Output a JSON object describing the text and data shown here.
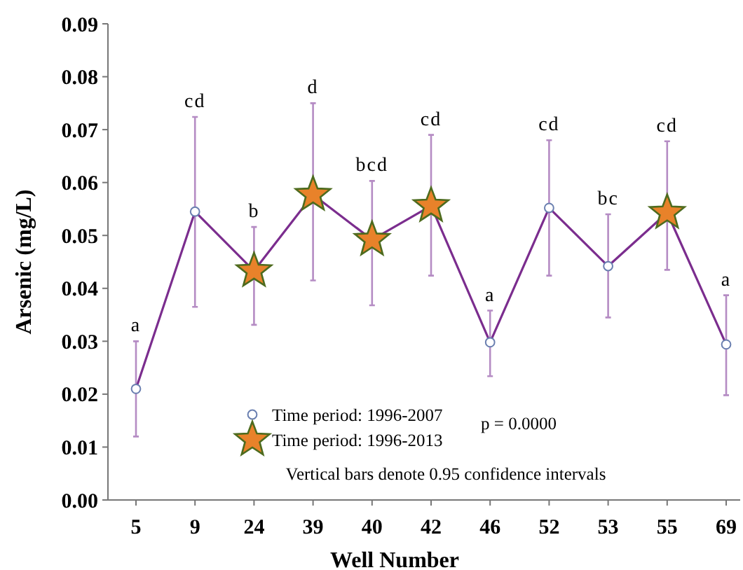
{
  "chart_data": {
    "type": "line",
    "xlabel": "Well Number",
    "ylabel": "Arsenic (mg/L)",
    "categories": [
      "5",
      "9",
      "24",
      "39",
      "40",
      "42",
      "46",
      "52",
      "53",
      "55",
      "69"
    ],
    "ylim": [
      0,
      0.09
    ],
    "yticks": [
      {
        "value": 0,
        "label": "0.00"
      },
      {
        "value": 0.01,
        "label": "0.01"
      },
      {
        "value": 0.02,
        "label": "0.02"
      },
      {
        "value": 0.03,
        "label": "0.03"
      },
      {
        "value": 0.04,
        "label": "0.04"
      },
      {
        "value": 0.05,
        "label": "0.05"
      },
      {
        "value": 0.06,
        "label": "0.06"
      },
      {
        "value": 0.07,
        "label": "0.07"
      },
      {
        "value": 0.08,
        "label": "0.08"
      },
      {
        "value": 0.09,
        "label": "0.09"
      }
    ],
    "series": [
      {
        "name": "Time period: 1996-2007",
        "color": "#7b2d8e",
        "marker": "circle",
        "values": [
          0.021,
          0.0545,
          0.0433,
          0.0577,
          0.0492,
          0.0556,
          0.0298,
          0.0552,
          0.0442,
          0.0543,
          0.0294
        ],
        "errors": [
          [
            0.012,
            0.03
          ],
          [
            0.0365,
            0.0724
          ],
          [
            0.0331,
            0.0516
          ],
          [
            0.0415,
            0.075
          ],
          [
            0.0368,
            0.0603
          ],
          [
            0.0424,
            0.069
          ],
          [
            0.0234,
            0.0358
          ],
          [
            0.0424,
            0.068
          ],
          [
            0.0345,
            0.054
          ],
          [
            0.0435,
            0.0678
          ],
          [
            0.0198,
            0.0387
          ]
        ]
      },
      {
        "name": "Time period: 1996-2013",
        "type": "scatter",
        "color": "#e8822a",
        "marker": "star",
        "values": [
          null,
          null,
          0.0433,
          0.0577,
          0.0492,
          0.0556,
          null,
          null,
          null,
          0.0543,
          null
        ]
      }
    ],
    "legend": "bottom",
    "annotations": [
      {
        "text": "a",
        "x": "5",
        "y": 0.03
      },
      {
        "text": "cd",
        "x": "9",
        "y": 0.0724
      },
      {
        "text": "b",
        "x": "24",
        "y": 0.0516
      },
      {
        "text": "d",
        "x": "39",
        "y": 0.075
      },
      {
        "text": "bcd",
        "x": "40",
        "y": 0.0603
      },
      {
        "text": "cd",
        "x": "42",
        "y": 0.069
      },
      {
        "text": "a",
        "x": "46",
        "y": 0.0358
      },
      {
        "text": "cd",
        "x": "52",
        "y": 0.068
      },
      {
        "text": "bc",
        "x": "53",
        "y": 0.054
      },
      {
        "text": "cd",
        "x": "55",
        "y": 0.0678
      },
      {
        "text": "a",
        "x": "69",
        "y": 0.0387
      },
      "p = 0.0000",
      "Vertical bars denote 0.95 confidence intervals"
    ]
  }
}
